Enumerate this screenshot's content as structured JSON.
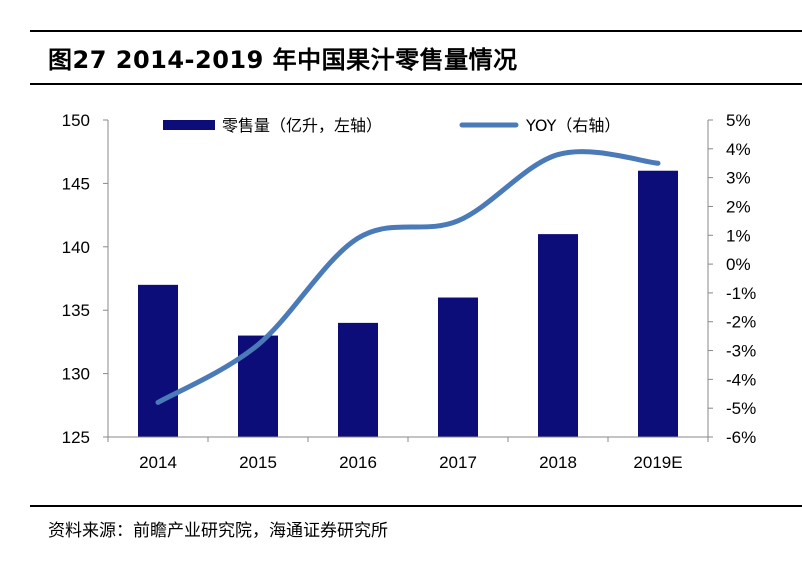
{
  "figure": {
    "title": "图27 2014-2019 年中国果汁零售量情况",
    "source": "资料来源：前瞻产业研究院，海通证券研究所"
  },
  "chart_data": {
    "type": "bar",
    "categories": [
      "2014",
      "2015",
      "2016",
      "2017",
      "2018",
      "2019E"
    ],
    "series": [
      {
        "name": "零售量（亿升，左轴）",
        "type": "bar",
        "axis": "left",
        "values": [
          137,
          133,
          134,
          136,
          141,
          146
        ]
      },
      {
        "name": "YOY（右轴）",
        "type": "line",
        "axis": "right",
        "values": [
          -4.8,
          -2.8,
          0.9,
          1.5,
          3.8,
          3.5
        ]
      }
    ],
    "y_left": {
      "min": 125,
      "max": 150,
      "ticks": [
        125,
        130,
        135,
        140,
        145,
        150
      ]
    },
    "y_right": {
      "min": -6,
      "max": 5,
      "ticks": [
        -6,
        -5,
        -4,
        -3,
        -2,
        -1,
        0,
        1,
        2,
        3,
        4,
        5
      ],
      "unit": "%"
    },
    "legend_position": "top",
    "grid": false,
    "colors": {
      "bar": "#0d0d7a",
      "line": "#4a7ab8"
    }
  }
}
